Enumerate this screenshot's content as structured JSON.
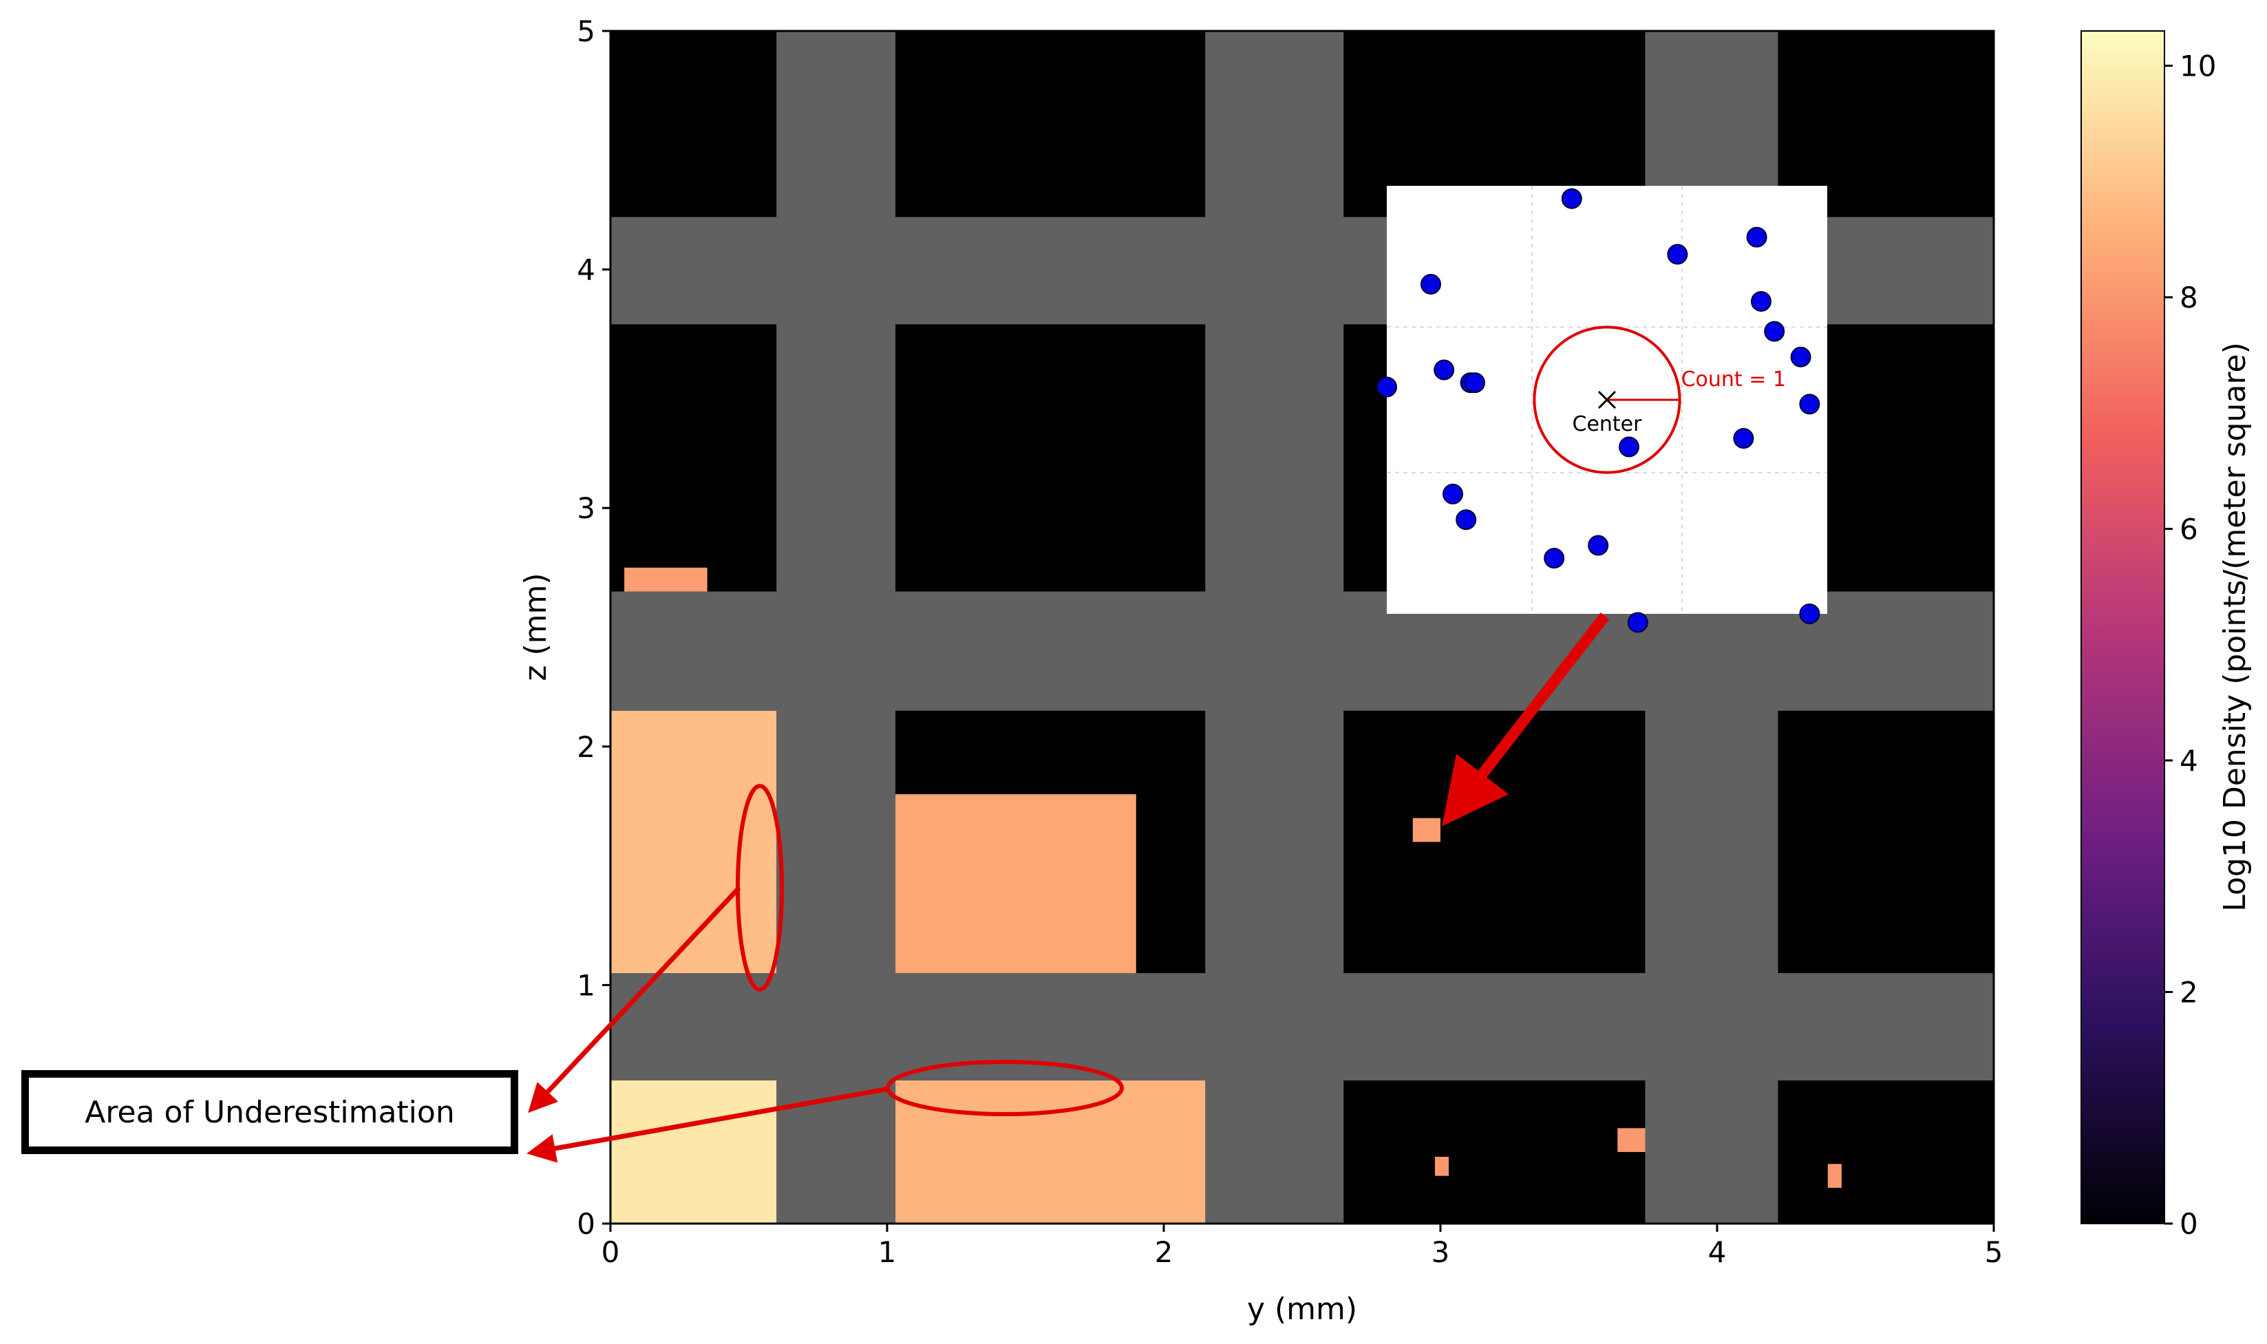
{
  "chart_data": {
    "type": "heatmap",
    "title": "",
    "xlabel": "y (mm)",
    "ylabel": "z (mm)",
    "xlim": [
      0,
      5
    ],
    "ylim": [
      0,
      5
    ],
    "xticks": [
      0,
      1,
      2,
      3,
      4,
      5
    ],
    "yticks": [
      0,
      1,
      2,
      3,
      4,
      5
    ],
    "colorbar": {
      "label": "Log10 Density (points/(meter square)",
      "range": [
        0,
        10.3
      ],
      "ticks": [
        0,
        2,
        4,
        6,
        8,
        10
      ],
      "colormap": "magma",
      "stops": [
        "#000004",
        "#2c115f",
        "#721f81",
        "#b73779",
        "#f1605d",
        "#feb078",
        "#fcfdbf"
      ]
    },
    "background_color": "#616161",
    "empty_cell_color": "#000000",
    "lattice": {
      "cell_y_ranges": [
        [
          0,
          0.6
        ],
        [
          1.03,
          2.15
        ],
        [
          2.65,
          3.74
        ],
        [
          4.22,
          5
        ]
      ],
      "cell_z_ranges": [
        [
          0,
          0.6
        ],
        [
          1.05,
          2.15
        ],
        [
          2.65,
          3.77
        ],
        [
          4.22,
          5
        ]
      ],
      "strut_y_ranges": [
        [
          0.6,
          1.03
        ],
        [
          2.15,
          2.65
        ],
        [
          3.74,
          4.22
        ]
      ],
      "strut_z_ranges": [
        [
          0.6,
          1.05
        ],
        [
          2.15,
          2.65
        ],
        [
          3.77,
          4.22
        ]
      ]
    },
    "density_regions": [
      {
        "y": [
          0,
          0.6
        ],
        "z": [
          0,
          0.6
        ],
        "log10_density": 9.8
      },
      {
        "y": [
          0,
          0.6
        ],
        "z": [
          1.05,
          2.15
        ],
        "log10_density": 8.9
      },
      {
        "y": [
          1.03,
          2.15
        ],
        "z": [
          0,
          0.6
        ],
        "log10_density": 8.7
      },
      {
        "y": [
          1.03,
          1.9
        ],
        "z": [
          1.05,
          1.8
        ],
        "log10_density": 8.4
      },
      {
        "y": [
          2.9,
          3.0
        ],
        "z": [
          1.6,
          1.7
        ],
        "log10_density": 8.2
      },
      {
        "y": [
          0.05,
          0.35
        ],
        "z": [
          2.65,
          2.75
        ],
        "log10_density": 8.2
      },
      {
        "y": [
          2.98,
          3.03
        ],
        "z": [
          0.2,
          0.28
        ],
        "log10_density": 8.1
      },
      {
        "y": [
          3.64,
          3.74
        ],
        "z": [
          0.3,
          0.4
        ],
        "log10_density": 8.1
      },
      {
        "y": [
          4.4,
          4.45
        ],
        "z": [
          0.15,
          0.25
        ],
        "log10_density": 8.1
      }
    ],
    "inset": {
      "center_label": "Center",
      "count_label": "Count = 1",
      "points": [
        [
          0.42,
          0.97
        ],
        [
          0.66,
          0.84
        ],
        [
          0.84,
          0.88
        ],
        [
          0.1,
          0.77
        ],
        [
          0.85,
          0.73
        ],
        [
          0.88,
          0.66
        ],
        [
          0.13,
          0.57
        ],
        [
          0.19,
          0.54
        ],
        [
          0.94,
          0.6
        ],
        [
          0.0,
          0.53
        ],
        [
          0.2,
          0.54
        ],
        [
          0.96,
          0.49
        ],
        [
          0.55,
          0.39
        ],
        [
          0.81,
          0.41
        ],
        [
          0.15,
          0.28
        ],
        [
          0.18,
          0.22
        ],
        [
          0.38,
          0.13
        ],
        [
          0.48,
          0.16
        ],
        [
          0.96,
          0.0
        ],
        [
          0.57,
          -0.02
        ]
      ],
      "center": [
        0.5,
        0.5
      ],
      "circle_radius": 0.165
    },
    "annotations": [
      {
        "text": "Area of Underestimation",
        "type": "callout-box"
      }
    ]
  }
}
